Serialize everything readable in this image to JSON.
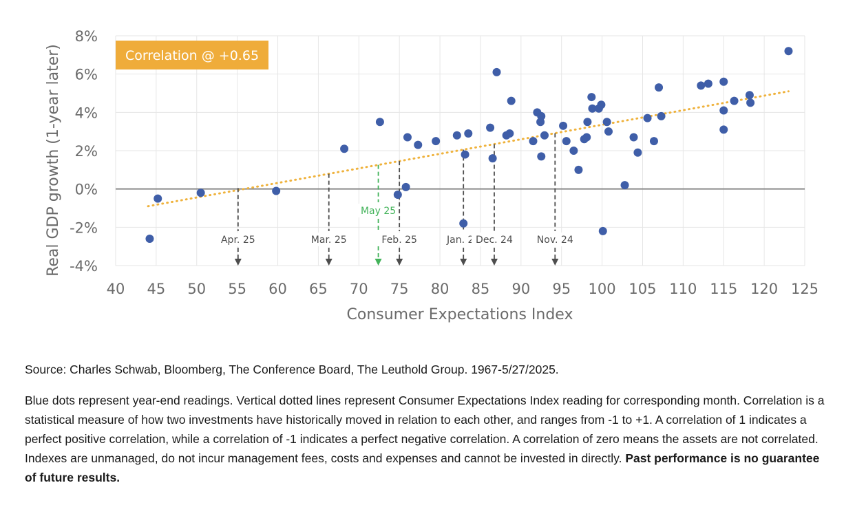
{
  "chart_data": {
    "type": "scatter",
    "xlabel": "Consumer Expectations Index",
    "ylabel": "Real GDP growth (1-year later)",
    "xlim": [
      40,
      125
    ],
    "ylim": [
      -4,
      8
    ],
    "x_ticks": [
      "40",
      "45",
      "50",
      "55",
      "60",
      "65",
      "70",
      "75",
      "80",
      "85",
      "90",
      "95",
      "100",
      "105",
      "110",
      "115",
      "120",
      "125"
    ],
    "y_ticks": [
      "8%",
      "6%",
      "4%",
      "2%",
      "0%",
      "-2%",
      "-4%"
    ],
    "grid": true,
    "correlation_label": "Correlation @ +0.65",
    "colors": {
      "points": "#3f5ea8",
      "trend": "#efb23c",
      "badge": "#efac3a",
      "highlight": "#43b35a",
      "marker": "#4d4d4d"
    },
    "trendline": {
      "x": [
        44,
        123
      ],
      "y": [
        -0.9,
        5.1
      ]
    },
    "points": [
      {
        "x": 44.2,
        "y": -2.6
      },
      {
        "x": 45.2,
        "y": -0.5
      },
      {
        "x": 50.5,
        "y": -0.2
      },
      {
        "x": 59.8,
        "y": -0.1
      },
      {
        "x": 68.2,
        "y": 2.1
      },
      {
        "x": 72.6,
        "y": 3.5
      },
      {
        "x": 74.8,
        "y": -0.3
      },
      {
        "x": 75.8,
        "y": 0.1
      },
      {
        "x": 76.0,
        "y": 2.7
      },
      {
        "x": 77.3,
        "y": 2.3
      },
      {
        "x": 79.5,
        "y": 2.5
      },
      {
        "x": 82.1,
        "y": 2.8
      },
      {
        "x": 82.9,
        "y": -1.8
      },
      {
        "x": 83.1,
        "y": 1.8
      },
      {
        "x": 83.5,
        "y": 2.9
      },
      {
        "x": 86.2,
        "y": 3.2
      },
      {
        "x": 86.5,
        "y": 1.6
      },
      {
        "x": 87.0,
        "y": 6.1
      },
      {
        "x": 88.2,
        "y": 2.8
      },
      {
        "x": 88.6,
        "y": 2.9
      },
      {
        "x": 88.8,
        "y": 4.6
      },
      {
        "x": 91.5,
        "y": 2.5
      },
      {
        "x": 92.0,
        "y": 4.0
      },
      {
        "x": 92.4,
        "y": 3.5
      },
      {
        "x": 92.5,
        "y": 3.8
      },
      {
        "x": 92.5,
        "y": 1.7
      },
      {
        "x": 92.9,
        "y": 2.8
      },
      {
        "x": 95.2,
        "y": 3.3
      },
      {
        "x": 95.6,
        "y": 2.5
      },
      {
        "x": 96.5,
        "y": 2.0
      },
      {
        "x": 97.1,
        "y": 1.0
      },
      {
        "x": 97.8,
        "y": 2.6
      },
      {
        "x": 98.1,
        "y": 2.7
      },
      {
        "x": 98.2,
        "y": 3.5
      },
      {
        "x": 98.7,
        "y": 4.8
      },
      {
        "x": 98.8,
        "y": 4.2
      },
      {
        "x": 99.6,
        "y": 4.2
      },
      {
        "x": 99.9,
        "y": 4.4
      },
      {
        "x": 100.1,
        "y": -2.2
      },
      {
        "x": 100.6,
        "y": 3.5
      },
      {
        "x": 100.8,
        "y": 3.0
      },
      {
        "x": 102.8,
        "y": 0.2
      },
      {
        "x": 103.9,
        "y": 2.7
      },
      {
        "x": 104.4,
        "y": 1.9
      },
      {
        "x": 105.6,
        "y": 3.7
      },
      {
        "x": 106.4,
        "y": 2.5
      },
      {
        "x": 107.0,
        "y": 5.3
      },
      {
        "x": 107.3,
        "y": 3.8
      },
      {
        "x": 112.2,
        "y": 5.4
      },
      {
        "x": 113.1,
        "y": 5.5
      },
      {
        "x": 115.0,
        "y": 5.6
      },
      {
        "x": 115.0,
        "y": 4.1
      },
      {
        "x": 115.0,
        "y": 3.1
      },
      {
        "x": 116.3,
        "y": 4.6
      },
      {
        "x": 118.2,
        "y": 4.9
      },
      {
        "x": 118.3,
        "y": 4.5
      },
      {
        "x": 123.0,
        "y": 7.2
      }
    ],
    "markers": [
      {
        "label": "Apr. 25",
        "x": 55.1,
        "highlight": false
      },
      {
        "label": "Mar. 25",
        "x": 66.3,
        "highlight": false
      },
      {
        "label": "May 25",
        "x": 72.4,
        "highlight": true
      },
      {
        "label": "Feb. 25",
        "x": 75.0,
        "highlight": false
      },
      {
        "label": "Jan. 25",
        "x": 82.9,
        "highlight": false
      },
      {
        "label": "Dec. 24",
        "x": 86.7,
        "highlight": false
      },
      {
        "label": "Nov. 24",
        "x": 94.2,
        "highlight": false
      }
    ]
  },
  "notes": {
    "source": "Source: Charles Schwab, Bloomberg, The Conference Board, The Leuthold Group. 1967-5/27/2025.",
    "description": "Blue dots represent year-end readings. Vertical dotted lines represent Consumer Expectations Index reading for corresponding month. Correlation is a statistical measure of how two investments have historically moved in relation to each other, and ranges from -1 to +1. A correlation of 1 indicates a perfect positive correlation, while a correlation of -1 indicates a perfect negative correlation. A correlation of zero means the assets are not correlated. Indexes are unmanaged, do not incur management fees, costs and expenses and cannot be invested in directly.",
    "disclaimer": "Past performance is no guarantee of future results."
  }
}
